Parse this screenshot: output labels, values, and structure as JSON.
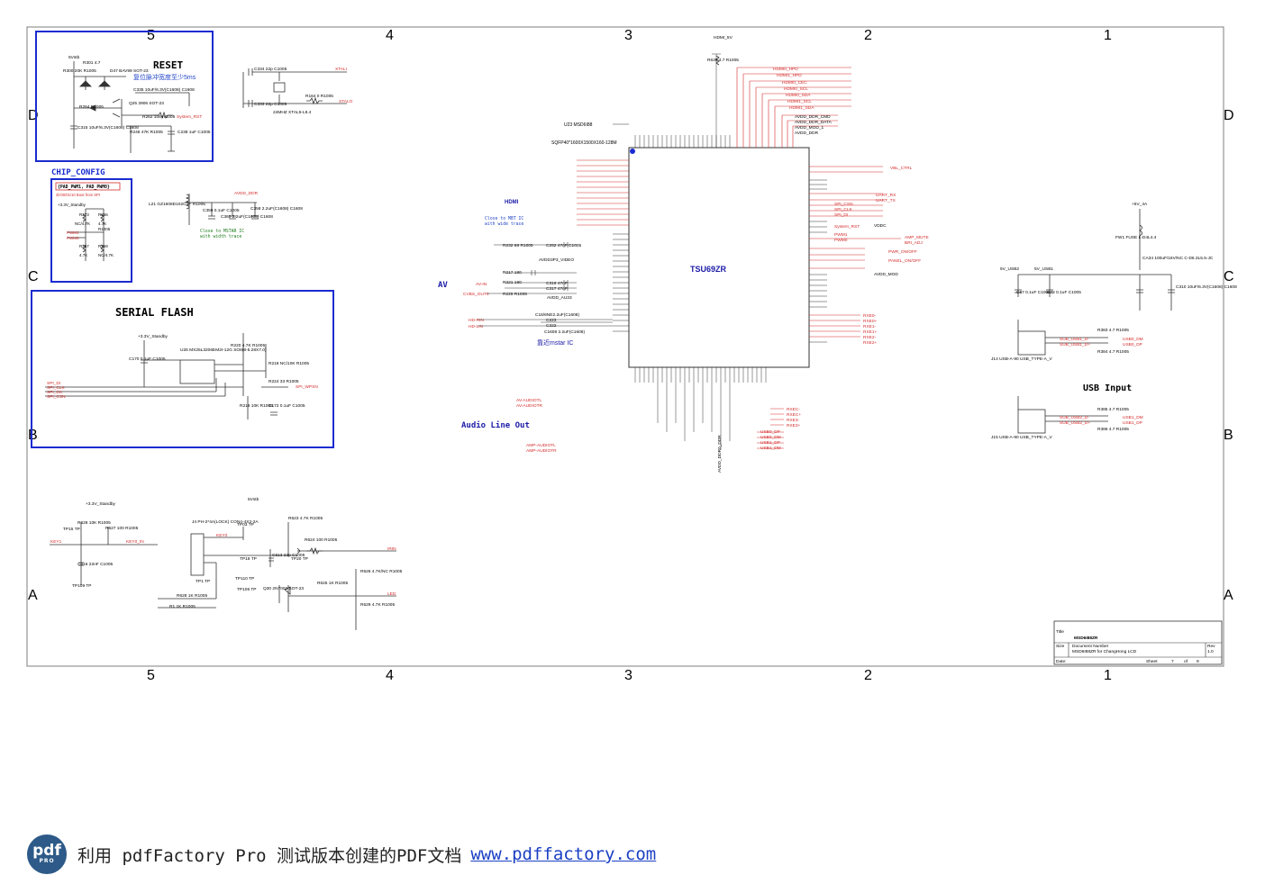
{
  "grid": {
    "cols_top": [
      "5",
      "4",
      "3",
      "2",
      "1"
    ],
    "cols_bottom": [
      "5",
      "4",
      "3",
      "2",
      "1"
    ],
    "rows_left": [
      "D",
      "C",
      "B",
      "A"
    ],
    "rows_right": [
      "D",
      "C",
      "B",
      "A"
    ]
  },
  "blocks": {
    "reset": {
      "title": "RESET",
      "note": "复位脉冲宽度至少5ms",
      "labels": [
        "5Vstb",
        "R301 4.7",
        "R300 20K R1005",
        "D47 BAV99 SOT-23",
        "C335 10uF/6.3V(C1608) C1608",
        "Q25 3906 SOT-23",
        "R264 R1005",
        "R262 108 R1005",
        "System_RST",
        "C315 10uF/6.3V(C1608) C1608",
        "R248 47K R1005",
        "C238 1uF C1005"
      ]
    },
    "chip_config": {
      "title": "CHIP_CONFIG",
      "box_title": "{PAD_PWM1, PAD_PWM0}",
      "box_sub": "2b'00/01/10 Boot from SPI",
      "labels": [
        "+3.3V_Standby",
        "R273",
        "R256",
        "NC/4.7K",
        "4.7K",
        "R1005",
        "PWM1",
        "PWM0",
        "R257",
        "R259",
        "4.7K",
        "NC/4.7K"
      ]
    },
    "serial_flash": {
      "title": "SERIAL FLASH",
      "labels": [
        "+3.3V_Standby",
        "C170 0.1uF C1005",
        "U26 MX25L3206EM2I-12G SO8(8-5.28X7.0)",
        "R220 4.7K R1005",
        "R218 NC/10K R1005",
        "R224 33 R1005",
        "SPI_WPSN",
        "R219 10K R1005",
        "C172 0.1uF C1005",
        "SPI_DI",
        "SPI_CLK",
        "SPI_CK",
        "SPI_CSN"
      ]
    },
    "crystal": {
      "labels": [
        "C334 22p C1005",
        "XTALI",
        "XTALO",
        "24MHZ XTAL5-L9.4",
        "R164 0 R1005",
        "C333 22p C1005"
      ]
    },
    "power_filter": {
      "labels": [
        "L21 GZ1608D102CTF R1005",
        "AVDD_DDR",
        "C359 0.1uF C1005",
        "C360 2.2uF(C1608) C1608",
        "C358 2.2uF(C1608) C1608",
        "Close to MSTAR IC",
        "with width trace"
      ]
    },
    "main_ic": {
      "ref": "U23 MSD6I88",
      "package": "SQFP40*1600X1500X160-128M",
      "name": "TSU69ZR",
      "labels": [
        "HDMI",
        "Close to M8T IC",
        "with wide trace",
        "AV",
        "AVDD3P3_VIDEO",
        "AVDD_AU33",
        "靠近mstar IC",
        "Audio Line Out",
        "HDMI0_HPD",
        "HDMI1_HPD",
        "HDMI0_CEC",
        "HDMI0_SCL",
        "HDMI0_SDA",
        "HDMI1_SCL",
        "HDMI1_SDA",
        "AVDD_DDR_CMD",
        "AVDD_DDR_DATA",
        "AVDD_MOD_1",
        "AVDD_DDR",
        "VBL_CTRL",
        "UART_RX",
        "UART_TX",
        "SPI_CSN",
        "SPI_CLK",
        "SPI_DI",
        "System_RST",
        "PWM1",
        "PWM0",
        "AMP_MUTE",
        "BRI_ADJ",
        "PWR_ON/OFF",
        "PANEL_ON/OFF",
        "AVDD_MOD",
        "HDMI_5V",
        "R630 4.7 R1005",
        "AV-AUDIOTL",
        "AV-AUDIOTR",
        "AMP-AUDIOTL",
        "AMP-AUDIOTR",
        "RXE0-",
        "RXE0+",
        "RXE1-",
        "RXE1+",
        "RXE2-",
        "RXE2+",
        "RXEC-",
        "RXEC+",
        "RXE3-",
        "RXE3+",
        "USB0_DP",
        "USB0_DM",
        "USB1_DP",
        "USB1_DM",
        "VDDC",
        "AVDD_DDR0_DDR",
        "CVBS_OUT0",
        "HD-RIN",
        "HD-LIN",
        "AV-IN",
        "R232 68 R1005",
        "C252 47nF C1005",
        "C316 47nF",
        "C317 47nF",
        "R221 180",
        "R217 180",
        "R225 R1005",
        "C16/6NE2.2uF(C1608)",
        "C223",
        "C222",
        "C1608 2.2uF(C1608)"
      ]
    },
    "usb": {
      "title": "USB Input",
      "labels": [
        "+5V_4A",
        "FW1 FUSE L-D4L4.4",
        "CA34 100uF/16V/NC C-D6.3L5.5-JC",
        "C310 10uF/6.3V(C1608) C1608",
        "5V_USB2",
        "5V_USB1",
        "C67 0.1uF C1005",
        "C72 0.1uF C1005",
        "R383 4.7 R1005",
        "R384 4.7 R1005",
        "USB0_DM",
        "USB0_DP",
        "J14 USB-A-90 USB_TYPE-A_V",
        "R385 4.7 R1005",
        "R386 4.7 R1005",
        "USB1_DM",
        "USB1_DP",
        "J15 USB-A-90 USB_TYPE-A_V",
        "SUB_USB1_D-",
        "SUB_USB1_D+",
        "SUB_USB2_D-",
        "SUB_USB2_D+"
      ]
    },
    "keys": {
      "labels": [
        "+3.3V_Standby",
        "TP15 TP",
        "R628 10K R1005",
        "R627 100 R1005",
        "KEY1",
        "KEY0_IN",
        "C616 22nF C1005",
        "TP109 TP",
        "5Vstb",
        "J4 PH-2*4A(LOCK) CON4-4X2-2A",
        "KEY0",
        "TP03 TP",
        "TP18 TP",
        "TP110 TP",
        "R623 4.7K R1005",
        "R624 100 R1005",
        "C613 22p C1005",
        "TP20 TP",
        "TP1 TP",
        "TP106 TP",
        "Q30 2N7002 SOT-23",
        "R625 1K R1005",
        "R1 1K R1005",
        "R628 1K R1005",
        "IRIN",
        "LED",
        "R626 4.7K/NC R1005",
        "R629 4.7K R1005"
      ]
    }
  },
  "title_block": {
    "title_label": "Title",
    "title_value": "MSD6I88ZR",
    "size_label": "Size",
    "doc_label": "Document Number",
    "doc_value": "MSD6I88ZR for ChangHong LCD",
    "rev_label": "Rev",
    "rev_value": "1.0",
    "date_label": "Date:",
    "sheet_label": "Sheet",
    "sheet_value": "7",
    "of_label": "of",
    "of_value": "9"
  },
  "footer": {
    "logo_top": "pdf",
    "logo_bottom": "PRO",
    "text": "利用 pdfFactory Pro 测试版本创建的PDF文档",
    "link": "www.pdffactory.com"
  },
  "colors": {
    "frame": "#7f7f7f",
    "wire": "#333333",
    "net_red": "#d42a2a",
    "accent_blue": "#1a2bd0",
    "net_blue": "#2245c8",
    "ic_blue": "#1a1aa8",
    "note_green": "#1a7a1a"
  }
}
